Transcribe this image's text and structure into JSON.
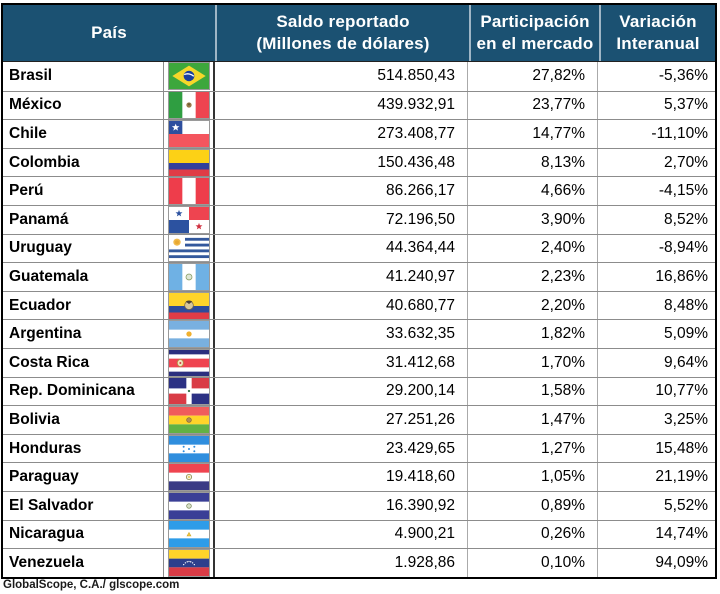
{
  "header": {
    "pais": "País",
    "saldo_line1": "Saldo reportado",
    "saldo_line2": "(Millones de dólares)",
    "part_line1": "Participación",
    "part_line2": "en el mercado",
    "var_line1": "Variación",
    "var_line2": "Interanual"
  },
  "colors": {
    "header_bg": "#1b5172",
    "header_text": "#ffffff",
    "header_divider": "#9fb6c6",
    "grid_line": "#8c8c8c",
    "outer_border": "#000000"
  },
  "rows": [
    {
      "country": "Brasil",
      "flag": "brasil",
      "saldo": "514.850,43",
      "participacion": "27,82%",
      "variacion": "-5,36%"
    },
    {
      "country": "México",
      "flag": "mexico",
      "saldo": "439.932,91",
      "participacion": "23,77%",
      "variacion": "5,37%"
    },
    {
      "country": "Chile",
      "flag": "chile",
      "saldo": "273.408,77",
      "participacion": "14,77%",
      "variacion": "-11,10%"
    },
    {
      "country": "Colombia",
      "flag": "colombia",
      "saldo": "150.436,48",
      "participacion": "8,13%",
      "variacion": "2,70%"
    },
    {
      "country": "Perú",
      "flag": "peru",
      "saldo": "86.266,17",
      "participacion": "4,66%",
      "variacion": "-4,15%"
    },
    {
      "country": "Panamá",
      "flag": "panama",
      "saldo": "72.196,50",
      "participacion": "3,90%",
      "variacion": "8,52%"
    },
    {
      "country": "Uruguay",
      "flag": "uruguay",
      "saldo": "44.364,44",
      "participacion": "2,40%",
      "variacion": "-8,94%"
    },
    {
      "country": "Guatemala",
      "flag": "guatemala",
      "saldo": "41.240,97",
      "participacion": "2,23%",
      "variacion": "16,86%"
    },
    {
      "country": "Ecuador",
      "flag": "ecuador",
      "saldo": "40.680,77",
      "participacion": "2,20%",
      "variacion": "8,48%"
    },
    {
      "country": "Argentina",
      "flag": "argentina",
      "saldo": "33.632,35",
      "participacion": "1,82%",
      "variacion": "5,09%"
    },
    {
      "country": "Costa Rica",
      "flag": "costa_rica",
      "saldo": "31.412,68",
      "participacion": "1,70%",
      "variacion": "9,64%"
    },
    {
      "country": "Rep. Dominicana",
      "flag": "dominicana",
      "saldo": "29.200,14",
      "participacion": "1,58%",
      "variacion": "10,77%"
    },
    {
      "country": "Bolivia",
      "flag": "bolivia",
      "saldo": "27.251,26",
      "participacion": "1,47%",
      "variacion": "3,25%"
    },
    {
      "country": "Honduras",
      "flag": "honduras",
      "saldo": "23.429,65",
      "participacion": "1,27%",
      "variacion": "15,48%"
    },
    {
      "country": "Paraguay",
      "flag": "paraguay",
      "saldo": "19.418,60",
      "participacion": "1,05%",
      "variacion": "21,19%"
    },
    {
      "country": "El Salvador",
      "flag": "el_salvador",
      "saldo": "16.390,92",
      "participacion": "0,89%",
      "variacion": "5,52%"
    },
    {
      "country": "Nicaragua",
      "flag": "nicaragua",
      "saldo": "4.900,21",
      "participacion": "0,26%",
      "variacion": "14,74%"
    },
    {
      "country": "Venezuela",
      "flag": "venezuela",
      "saldo": "1.928,86",
      "participacion": "0,10%",
      "variacion": "94,09%"
    }
  ],
  "footer": {
    "credit": "GlobalScope, C.A./ glscope.com"
  },
  "chart_data": {
    "type": "table",
    "title": "",
    "columns": [
      "País",
      "Saldo reportado (Millones de dólares)",
      "Participación en el mercado",
      "Variación Interanual"
    ],
    "rows": [
      [
        "Brasil",
        514850.43,
        27.82,
        -5.36
      ],
      [
        "México",
        439932.91,
        23.77,
        5.37
      ],
      [
        "Chile",
        273408.77,
        14.77,
        -11.1
      ],
      [
        "Colombia",
        150436.48,
        8.13,
        2.7
      ],
      [
        "Perú",
        86266.17,
        4.66,
        -4.15
      ],
      [
        "Panamá",
        72196.5,
        3.9,
        8.52
      ],
      [
        "Uruguay",
        44364.44,
        2.4,
        -8.94
      ],
      [
        "Guatemala",
        41240.97,
        2.23,
        16.86
      ],
      [
        "Ecuador",
        40680.77,
        2.2,
        8.48
      ],
      [
        "Argentina",
        33632.35,
        1.82,
        5.09
      ],
      [
        "Costa Rica",
        31412.68,
        1.7,
        9.64
      ],
      [
        "Rep. Dominicana",
        29200.14,
        1.58,
        10.77
      ],
      [
        "Bolivia",
        27251.26,
        1.47,
        3.25
      ],
      [
        "Honduras",
        23429.65,
        1.27,
        15.48
      ],
      [
        "Paraguay",
        19418.6,
        1.05,
        21.19
      ],
      [
        "El Salvador",
        16390.92,
        0.89,
        5.52
      ],
      [
        "Nicaragua",
        4900.21,
        0.26,
        14.74
      ],
      [
        "Venezuela",
        1928.86,
        0.1,
        94.09
      ]
    ],
    "notes": "Percent columns shown with comma decimal separator; saldo in millions of dollars"
  }
}
